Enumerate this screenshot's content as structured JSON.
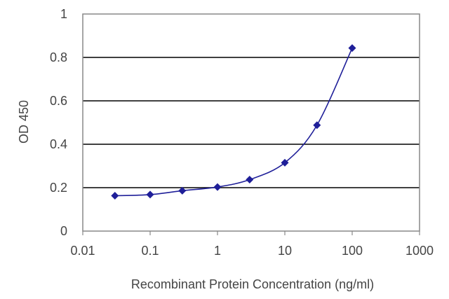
{
  "chart_data": {
    "type": "line",
    "title": "",
    "xlabel": "Recombinant Protein Concentration (ng/ml)",
    "ylabel": "OD 450",
    "xscale": "log",
    "xlim": [
      0.01,
      1000
    ],
    "ylim": [
      0,
      1
    ],
    "x_ticks": [
      "0.01",
      "0.1",
      "1",
      "10",
      "100",
      "1000"
    ],
    "y_ticks": [
      "0",
      "0.2",
      "0.4",
      "0.6",
      "0.8",
      "1"
    ],
    "grid": "horizontal",
    "legend": "none",
    "series": [
      {
        "x": [
          0.03,
          0.1,
          0.3,
          1,
          3,
          10,
          30,
          100
        ],
        "y": [
          0.163,
          0.168,
          0.186,
          0.203,
          0.237,
          0.315,
          0.488,
          0.843
        ]
      }
    ],
    "colors": {
      "series": "#1f1f99",
      "grid": "#000000",
      "axis": "#888888"
    }
  }
}
